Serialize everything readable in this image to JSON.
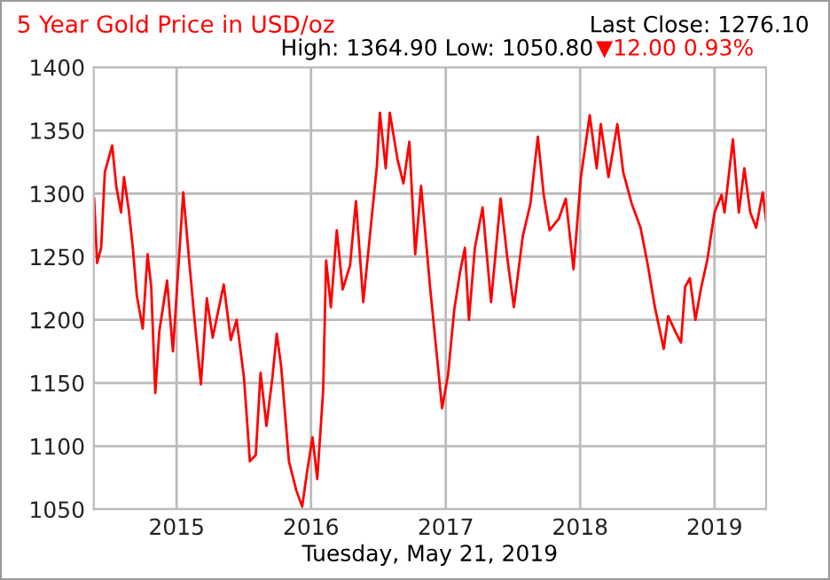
{
  "chart_data": {
    "type": "line",
    "title": "5 Year Gold Price in USD/oz",
    "xlabel": "Tuesday, May 21, 2019",
    "annotations": [
      "Last Close: 1276.10",
      "High: 1364.90 Low: 1050.80",
      "▼12.00 0.93%"
    ],
    "x": [
      "2014-05-22",
      "2014-05-30",
      "2014-06-10",
      "2014-06-20",
      "2014-07-10",
      "2014-07-21",
      "2014-08-03",
      "2014-08-11",
      "2014-08-24",
      "2014-09-04",
      "2014-09-15",
      "2014-10-01",
      "2014-10-14",
      "2014-10-24",
      "2014-11-04",
      "2014-11-15",
      "2014-12-06",
      "2014-12-22",
      "2015-01-19",
      "2015-02-04",
      "2015-02-20",
      "2015-03-08",
      "2015-03-24",
      "2015-04-09",
      "2015-05-09",
      "2015-05-28",
      "2015-06-13",
      "2015-07-03",
      "2015-07-19",
      "2015-08-04",
      "2015-08-17",
      "2015-09-02",
      "2015-09-18",
      "2015-09-30",
      "2015-10-12",
      "2015-11-02",
      "2015-11-22",
      "2015-12-08",
      "2015-12-21",
      "2016-01-05",
      "2016-01-18",
      "2016-02-03",
      "2016-02-11",
      "2016-02-24",
      "2016-03-11",
      "2016-03-27",
      "2016-04-16",
      "2016-05-02",
      "2016-05-22",
      "2016-06-07",
      "2016-06-28",
      "2016-07-06",
      "2016-07-22",
      "2016-08-02",
      "2016-08-23",
      "2016-09-08",
      "2016-09-24",
      "2016-10-10",
      "2016-10-26",
      "2016-11-20",
      "2016-12-06",
      "2016-12-22",
      "2017-01-07",
      "2017-01-24",
      "2017-02-09",
      "2017-02-22",
      "2017-03-05",
      "2017-03-21",
      "2017-04-11",
      "2017-05-04",
      "2017-05-30",
      "2017-06-18",
      "2017-07-05",
      "2017-07-29",
      "2017-08-19",
      "2017-09-08",
      "2017-09-24",
      "2017-10-10",
      "2017-11-04",
      "2017-11-23",
      "2017-12-14",
      "2018-01-03",
      "2018-01-27",
      "2018-02-15",
      "2018-02-26",
      "2018-03-19",
      "2018-04-12",
      "2018-04-28",
      "2018-05-21",
      "2018-06-14",
      "2018-07-04",
      "2018-07-23",
      "2018-08-16",
      "2018-08-28",
      "2018-09-16",
      "2018-10-02",
      "2018-10-13",
      "2018-10-26",
      "2018-11-10",
      "2018-11-26",
      "2018-12-12",
      "2019-01-01",
      "2019-01-20",
      "2019-01-28",
      "2019-02-20",
      "2019-03-08",
      "2019-03-23",
      "2019-04-08",
      "2019-04-24",
      "2019-05-12",
      "2019-05-21"
    ],
    "series": [
      {
        "color": "#ff0000",
        "values": [
          1296,
          1245,
          1257,
          1317,
          1338,
          1306,
          1285,
          1313,
          1287,
          1257,
          1219,
          1193,
          1252,
          1226,
          1142,
          1191,
          1231,
          1175,
          1301,
          1247,
          1196,
          1149,
          1217,
          1186,
          1228,
          1184,
          1200,
          1154,
          1088,
          1093,
          1158,
          1116,
          1154,
          1189,
          1163,
          1088,
          1065,
          1052,
          1079,
          1107,
          1074,
          1144,
          1247,
          1210,
          1271,
          1224,
          1243,
          1294,
          1214,
          1261,
          1322,
          1364,
          1320,
          1364,
          1327,
          1308,
          1341,
          1252,
          1306,
          1224,
          1177,
          1130,
          1156,
          1208,
          1238,
          1257,
          1200,
          1257,
          1289,
          1214,
          1296,
          1247,
          1210,
          1266,
          1292,
          1345,
          1299,
          1271,
          1280,
          1296,
          1240,
          1313,
          1362,
          1320,
          1355,
          1313,
          1355,
          1317,
          1292,
          1273,
          1243,
          1210,
          1177,
          1203,
          1191,
          1182,
          1226,
          1233,
          1200,
          1226,
          1247,
          1285,
          1299,
          1285,
          1343,
          1285,
          1320,
          1285,
          1273,
          1301,
          1278
        ]
      }
    ],
    "xlim": [
      "2014-05-21",
      "2019-05-21"
    ],
    "xticks": [
      {
        "value": "2015-01-01",
        "label": "2015"
      },
      {
        "value": "2016-01-01",
        "label": "2016"
      },
      {
        "value": "2017-01-01",
        "label": "2017"
      },
      {
        "value": "2018-01-01",
        "label": "2018"
      },
      {
        "value": "2019-01-01",
        "label": "2019"
      }
    ],
    "ylim": [
      1050,
      1400
    ],
    "yticks": [
      1050,
      1100,
      1150,
      1200,
      1250,
      1300,
      1350,
      1400
    ],
    "grid": true,
    "legend": false,
    "marker": "none",
    "line_style": "solid"
  }
}
